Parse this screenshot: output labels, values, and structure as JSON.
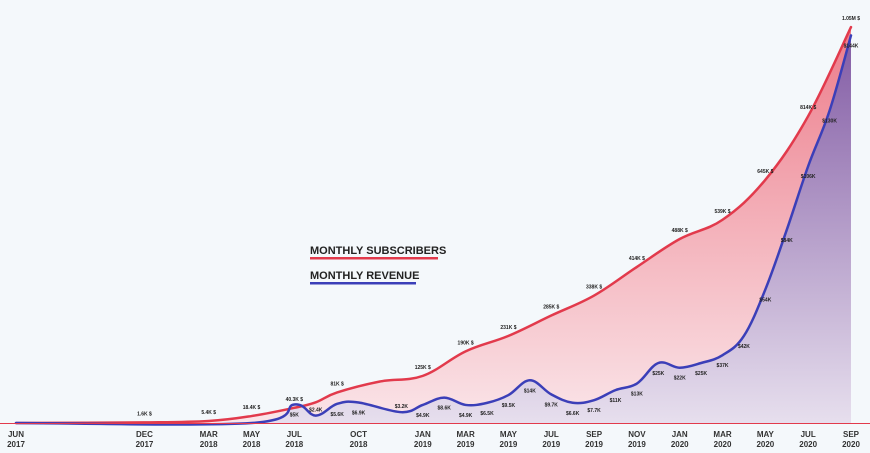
{
  "chart_data": {
    "type": "area",
    "categories": [
      "JUN 2017",
      "DEC 2017",
      "MAR 2018",
      "MAY 2018",
      "JUL 2018",
      "OCT 2018",
      "JAN 2019",
      "MAR 2019",
      "MAY 2019",
      "JUL 2019",
      "SEP 2019",
      "NOV 2019",
      "JAN 2020",
      "MAR 2020",
      "MAY 2020",
      "JUL 2020",
      "SEP 2020"
    ],
    "tick_labels": [
      {
        "month": "JUN",
        "year": "2017"
      },
      {
        "month": "DEC",
        "year": "2017"
      },
      {
        "month": "MAR",
        "year": "2018"
      },
      {
        "month": "MAY",
        "year": "2018"
      },
      {
        "month": "JUL",
        "year": "2018"
      },
      {
        "month": "OCT",
        "year": "2018"
      },
      {
        "month": "JAN",
        "year": "2019"
      },
      {
        "month": "MAR",
        "year": "2019"
      },
      {
        "month": "MAY",
        "year": "2019"
      },
      {
        "month": "JUL",
        "year": "2019"
      },
      {
        "month": "SEP",
        "year": "2019"
      },
      {
        "month": "NOV",
        "year": "2019"
      },
      {
        "month": "JAN",
        "year": "2020"
      },
      {
        "month": "MAR",
        "year": "2020"
      },
      {
        "month": "MAY",
        "year": "2020"
      },
      {
        "month": "JUL",
        "year": "2020"
      },
      {
        "month": "SEP",
        "year": "2020"
      }
    ],
    "y_unit": "$K",
    "ylim": [
      0,
      1090
    ],
    "grid": false,
    "legend_placement": "center-left",
    "series": [
      {
        "name": "MONTHLY SUBSCRIBERS",
        "color": "#e23a4c",
        "fill_top": "#ec6f7e",
        "fill_bottom": "#fbe3e7",
        "points": [
          {
            "x": "2017-06",
            "y": 0
          },
          {
            "x": "2017-12",
            "y": 1.6,
            "label": "1.6K $"
          },
          {
            "x": "2018-03",
            "y": 5.4,
            "label": "5.4K $"
          },
          {
            "x": "2018-05",
            "y": 18.4,
            "label": "18.4K $"
          },
          {
            "x": "2018-07",
            "y": 40.3,
            "label": "40.3K $"
          },
          {
            "x": "2018-08",
            "y": 55
          },
          {
            "x": "2018-09",
            "y": 81,
            "label": "81K $"
          },
          {
            "x": "2018-11",
            "y": 110
          },
          {
            "x": "2019-01",
            "y": 125,
            "label": "125K $"
          },
          {
            "x": "2019-03",
            "y": 190,
            "label": "190K $"
          },
          {
            "x": "2019-05",
            "y": 231,
            "label": "231K $"
          },
          {
            "x": "2019-07",
            "y": 285,
            "label": "285K $"
          },
          {
            "x": "2019-09",
            "y": 338,
            "label": "338K $"
          },
          {
            "x": "2019-11",
            "y": 414,
            "label": "414K $"
          },
          {
            "x": "2020-01",
            "y": 488,
            "label": "488K $"
          },
          {
            "x": "2020-03",
            "y": 539,
            "label": "539K $"
          },
          {
            "x": "2020-05",
            "y": 645,
            "label": "645K $"
          },
          {
            "x": "2020-07",
            "y": 814,
            "label": "814K $"
          },
          {
            "x": "2020-09",
            "y": 1050,
            "label": "1.05M $"
          }
        ]
      },
      {
        "name": "MONTHLY REVENUE",
        "color": "#3b3fb8",
        "fill_top": "#7d5aa6",
        "fill_bottom": "#e6dfee",
        "points": [
          {
            "x": "2017-06",
            "y": 0
          },
          {
            "x": "2018-05",
            "y": 0
          },
          {
            "x": "2018-07",
            "y": 5,
            "label": "$5K"
          },
          {
            "x": "2018-08",
            "y": 2.4,
            "label": "$2.4K"
          },
          {
            "x": "2018-09",
            "y": 5.6,
            "label": "$5.6K"
          },
          {
            "x": "2018-10",
            "y": 6.9,
            "label": "$6.9K"
          },
          {
            "x": "2018-12",
            "y": 3.2,
            "label": "$3.2K"
          },
          {
            "x": "2019-01",
            "y": 4.9,
            "label": "$4.9K"
          },
          {
            "x": "2019-02",
            "y": 8.6,
            "label": "$8.6K"
          },
          {
            "x": "2019-03",
            "y": 4.9,
            "label": "$4.9K"
          },
          {
            "x": "2019-04",
            "y": 6.5,
            "label": "$6.5K"
          },
          {
            "x": "2019-05",
            "y": 9.5,
            "label": "$9.5K"
          },
          {
            "x": "2019-06",
            "y": 14,
            "label": "$14K"
          },
          {
            "x": "2019-07",
            "y": 9.7,
            "label": "$9.7K"
          },
          {
            "x": "2019-08",
            "y": 6.6,
            "label": "$6.6K"
          },
          {
            "x": "2019-09",
            "y": 7.7,
            "label": "$7.7K"
          },
          {
            "x": "2019-10",
            "y": 11,
            "label": "$11K"
          },
          {
            "x": "2019-11",
            "y": 13,
            "label": "$13K"
          },
          {
            "x": "2019-12",
            "y": 25,
            "label": "$25K"
          },
          {
            "x": "2020-01",
            "y": 22,
            "label": "$22K"
          },
          {
            "x": "2020-02",
            "y": 25,
            "label": "$25K"
          },
          {
            "x": "2020-03",
            "y": 37,
            "label": "$37K"
          },
          {
            "x": "2020-04",
            "y": 42,
            "label": "$42K"
          },
          {
            "x": "2020-05",
            "y": 54,
            "label": "$54K"
          },
          {
            "x": "2020-06",
            "y": 84,
            "label": "$84K"
          },
          {
            "x": "2020-07",
            "y": 106,
            "label": "$106K"
          },
          {
            "x": "2020-08",
            "y": 130,
            "label": "$130K"
          },
          {
            "x": "2020-09",
            "y": 144,
            "label": "$144K"
          }
        ]
      }
    ],
    "legend": [
      {
        "label": "MONTHLY SUBSCRIBERS",
        "color": "#e23a4c"
      },
      {
        "label": "MONTHLY REVENUE",
        "color": "#3b3fb8"
      }
    ]
  }
}
